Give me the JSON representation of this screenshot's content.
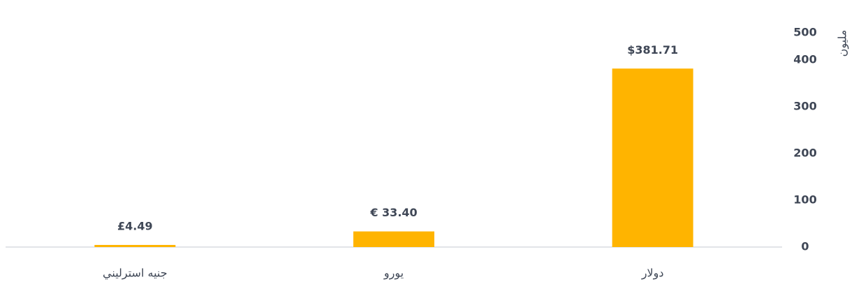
{
  "chart_data": {
    "type": "bar",
    "direction": "rtl",
    "y_label": "مليون",
    "categories": [
      "دولار",
      "يورو",
      "جنيه استرليني"
    ],
    "values": [
      381.71,
      33.4,
      4.49
    ],
    "value_labels": [
      "$381.71",
      "€ 33.40",
      "£4.49"
    ],
    "color": "#ffb400",
    "ylim": [
      0,
      500
    ],
    "yticks": [
      0,
      100,
      200,
      300,
      400,
      500
    ],
    "grid": false
  }
}
